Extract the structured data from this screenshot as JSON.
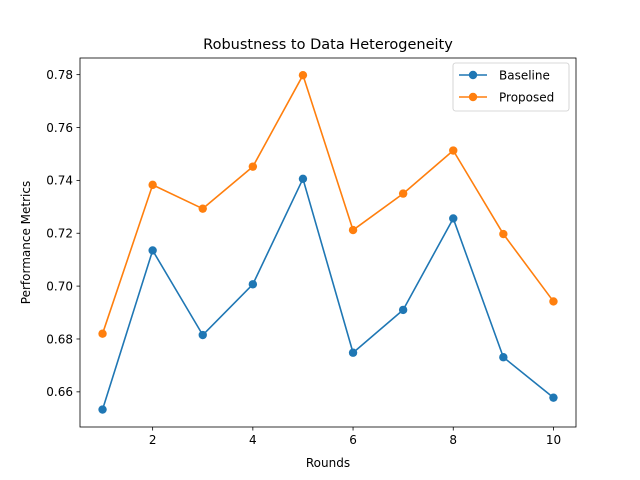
{
  "chart_data": {
    "type": "line",
    "title": "Robustness to Data Heterogeneity",
    "xlabel": "Rounds",
    "ylabel": "Performance Metrics",
    "x": [
      1,
      2,
      3,
      4,
      5,
      6,
      7,
      8,
      9,
      10
    ],
    "xlim": [
      0.55,
      10.45
    ],
    "ylim": [
      0.6467,
      0.7863
    ],
    "xticks": [
      2,
      4,
      6,
      8,
      10
    ],
    "yticks": [
      0.66,
      0.68,
      0.7,
      0.72,
      0.74,
      0.76,
      0.78
    ],
    "xtick_labels": [
      "2",
      "4",
      "6",
      "8",
      "10"
    ],
    "ytick_labels": [
      "0.66",
      "0.68",
      "0.70",
      "0.72",
      "0.74",
      "0.76",
      "0.78"
    ],
    "grid": false,
    "legend_position": "top-right",
    "series": [
      {
        "name": "Baseline",
        "color": "#1f77b4",
        "marker": "circle",
        "values": [
          0.6533,
          0.7135,
          0.6815,
          0.7007,
          0.7406,
          0.6748,
          0.691,
          0.7256,
          0.6731,
          0.6578
        ]
      },
      {
        "name": "Proposed",
        "color": "#ff7f0e",
        "marker": "circle",
        "values": [
          0.682,
          0.7383,
          0.7293,
          0.7452,
          0.7798,
          0.7212,
          0.735,
          0.7513,
          0.7197,
          0.6942
        ]
      }
    ]
  }
}
